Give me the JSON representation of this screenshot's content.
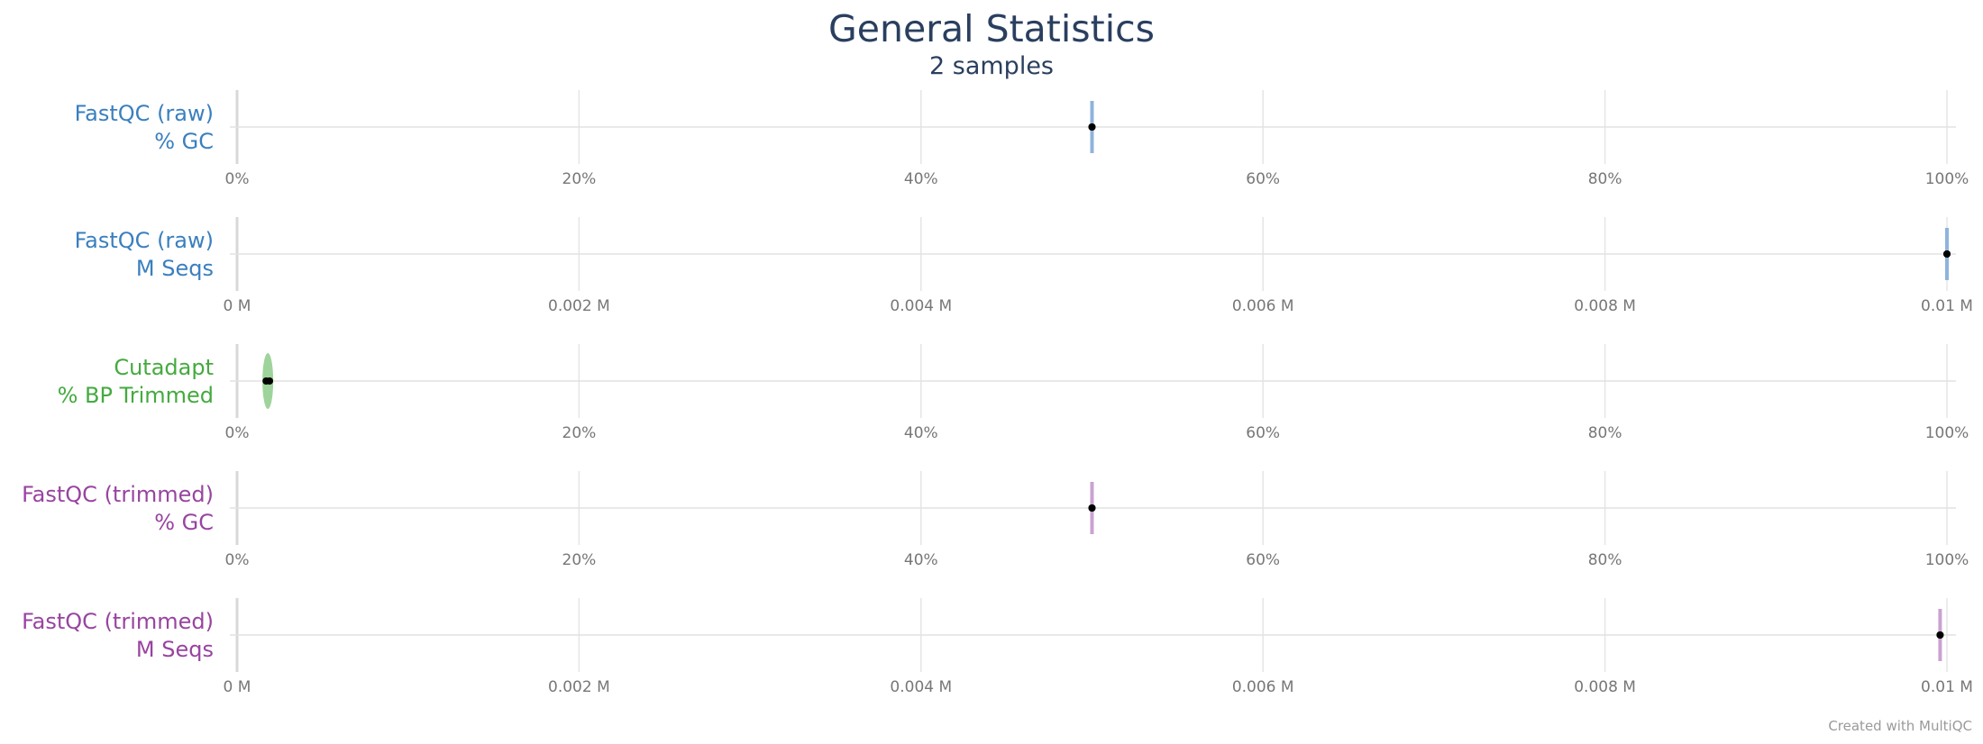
{
  "title": "General Statistics",
  "subtitle": "2 samples",
  "credit": "Created with MultiQC",
  "chart_data": [
    {
      "type": "violin",
      "label_lines": [
        "FastQC (raw)",
        "% GC"
      ],
      "color": "#3a7fbf",
      "shape_color": "#8fb4dc",
      "shape": "line",
      "xlim": [
        0,
        100
      ],
      "ticks": [
        0,
        20,
        40,
        60,
        80,
        100
      ],
      "tick_labels": [
        "0%",
        "20%",
        "40%",
        "60%",
        "80%",
        "100%"
      ],
      "values": [
        50,
        50
      ]
    },
    {
      "type": "violin",
      "label_lines": [
        "FastQC (raw)",
        "M Seqs"
      ],
      "color": "#3a7fbf",
      "shape_color": "#8fb4dc",
      "shape": "line",
      "xlim": [
        0,
        0.01
      ],
      "ticks": [
        0,
        0.002,
        0.004,
        0.006,
        0.008,
        0.01
      ],
      "tick_labels": [
        "0 M",
        "0.002 M",
        "0.004 M",
        "0.006 M",
        "0.008 M",
        "0.01 M"
      ],
      "values": [
        0.01,
        0.01
      ]
    },
    {
      "type": "violin",
      "label_lines": [
        "Cutadapt",
        "% BP Trimmed"
      ],
      "color": "#44aa3f",
      "shape_color": "#9ed49b",
      "shape": "ellipse",
      "xlim": [
        0,
        100
      ],
      "ticks": [
        0,
        20,
        40,
        60,
        80,
        100
      ],
      "tick_labels": [
        "0%",
        "20%",
        "40%",
        "60%",
        "80%",
        "100%"
      ],
      "values": [
        1.7,
        1.9
      ]
    },
    {
      "type": "violin",
      "label_lines": [
        "FastQC (trimmed)",
        "% GC"
      ],
      "color": "#9844a0",
      "shape_color": "#c9a3d1",
      "shape": "line",
      "xlim": [
        0,
        100
      ],
      "ticks": [
        0,
        20,
        40,
        60,
        80,
        100
      ],
      "tick_labels": [
        "0%",
        "20%",
        "40%",
        "60%",
        "80%",
        "100%"
      ],
      "values": [
        50,
        50
      ]
    },
    {
      "type": "violin",
      "label_lines": [
        "FastQC (trimmed)",
        "M Seqs"
      ],
      "color": "#9844a0",
      "shape_color": "#c9a3d1",
      "shape": "line",
      "xlim": [
        0,
        0.01
      ],
      "ticks": [
        0,
        0.002,
        0.004,
        0.006,
        0.008,
        0.01
      ],
      "tick_labels": [
        "0 M",
        "0.002 M",
        "0.004 M",
        "0.006 M",
        "0.008 M",
        "0.01 M"
      ],
      "values": [
        0.00996,
        0.00996
      ]
    }
  ]
}
